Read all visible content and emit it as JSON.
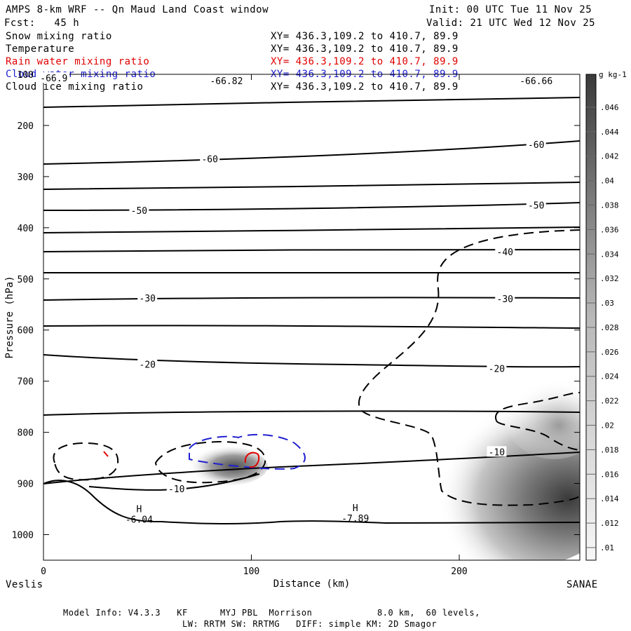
{
  "header": {
    "title": "AMPS 8-km WRF -- Qn Maud Land Coast window",
    "init": "Init: 00 UTC Tue 11 Nov 25",
    "fcst": "Fcst:   45 h",
    "valid": "Valid: 21 UTC Wed 12 Nov 25"
  },
  "fields": [
    {
      "name": "Snow mixing ratio",
      "xy": "XY= 436.3,109.2 to 410.7, 89.9",
      "color": "#000000"
    },
    {
      "name": "Temperature",
      "xy": "XY= 436.3,109.2 to 410.7, 89.9",
      "color": "#000000"
    },
    {
      "name": "Rain water mixing ratio",
      "xy": "XY= 436.3,109.2 to 410.7, 89.9",
      "color": "#e00000"
    },
    {
      "name": "Cloud water mixing ratio",
      "xy": "XY= 436.3,109.2 to 410.7, 89.9",
      "color": "#2020d0"
    },
    {
      "name": "Cloud ice mixing ratio",
      "xy": "XY= 436.3,109.2 to 410.7, 89.9",
      "color": "#000000"
    }
  ],
  "chart_data": {
    "type": "cross-section contour",
    "xlabel": "Distance (km)",
    "ylabel": "Pressure (hPa)",
    "xlim": [
      0,
      258
    ],
    "ylim": [
      1050,
      100
    ],
    "x_ticks": [
      "0",
      "100",
      "200"
    ],
    "y_ticks": [
      "100",
      "200",
      "300",
      "400",
      "500",
      "600",
      "700",
      "800",
      "900",
      "1000"
    ],
    "start_label": "Veslis",
    "end_label": "SANAE",
    "temperature_contours_C": [
      {
        "label": "-66.9",
        "x": 5,
        "p": 107
      },
      {
        "label": "-66.82",
        "x": 88,
        "p": 112
      },
      {
        "label": "-66.66",
        "x": 237,
        "p": 112
      },
      {
        "label": "-60",
        "x": 80,
        "p": 265
      },
      {
        "label": "-60",
        "x": 237,
        "p": 237
      },
      {
        "label": "-50",
        "x": 46,
        "p": 366
      },
      {
        "label": "-50",
        "x": 237,
        "p": 356
      },
      {
        "label": "-40",
        "x": 222,
        "p": 447
      },
      {
        "label": "-30",
        "x": 50,
        "p": 537
      },
      {
        "label": "-30",
        "x": 222,
        "p": 539
      },
      {
        "label": "-20",
        "x": 50,
        "p": 667
      },
      {
        "label": "-20",
        "x": 218,
        "p": 675
      },
      {
        "label": "-10",
        "x": 64,
        "p": 910
      },
      {
        "label": "-10",
        "x": 218,
        "p": 838
      }
    ],
    "surface_highs": [
      {
        "mark": "H",
        "value": "-6.04",
        "x": 46,
        "p": 970
      },
      {
        "mark": "H",
        "value": "-7.89",
        "x": 150,
        "p": 968
      }
    ],
    "colorbar": {
      "units": "g kg-1",
      "ticks": [
        ".01",
        ".012",
        ".014",
        ".016",
        ".018",
        ".02",
        ".022",
        ".024",
        ".026",
        ".028",
        ".03",
        ".032",
        ".034",
        ".036",
        ".038",
        ".04",
        ".042",
        ".044",
        ".046"
      ]
    }
  },
  "footer": {
    "line1": "Model Info: V4.3.3   KF      MYJ PBL  Morrison            8.0 km,  60 levels,",
    "line2": "LW: RRTM SW: RRTMG   DIFF: simple KM: 2D Smagor"
  }
}
